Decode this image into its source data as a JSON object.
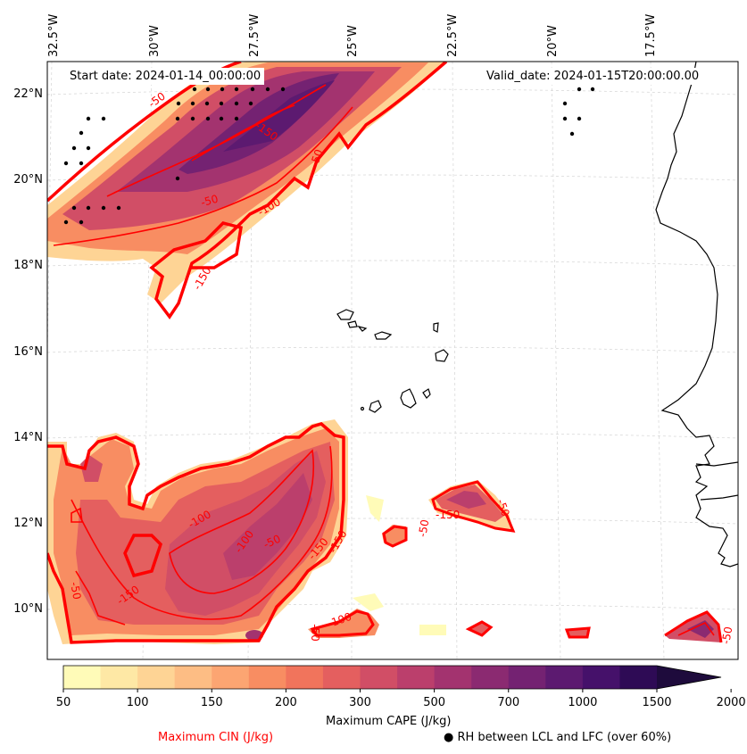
{
  "map": {
    "start_date_label": "Start date: 2024-01-14_00:00:00",
    "valid_date_label": "Valid_date: 2024-01-15T20:00:00.00",
    "lon_labels": [
      "32.5°W",
      "30°W",
      "27.5°W",
      "25°W",
      "22.5°W",
      "20°W",
      "17.5°W"
    ],
    "lat_labels": [
      "22°N",
      "20°N",
      "18°N",
      "16°N",
      "14°N",
      "12°N",
      "10°N"
    ],
    "cin_contour_labels": [
      "-50",
      "-50",
      "-100",
      "-150",
      "-50",
      "-150",
      "-50",
      "-100",
      "-150",
      "-100",
      "-150",
      "-50",
      "-50",
      "-150",
      "-50",
      "-100",
      "-150",
      "-50",
      "-50"
    ],
    "colors": {
      "cin_contour": "#ff0000",
      "coastline": "#000000",
      "gridline": "#cccccc"
    }
  },
  "colorbar": {
    "title": "Maximum CAPE (J/kg)",
    "tick_labels": [
      "50",
      "100",
      "150",
      "200",
      "300",
      "500",
      "700",
      "1000",
      "1500",
      "2000"
    ],
    "level_colors": [
      "#fffbb8",
      "#fee8a5",
      "#fed495",
      "#fdbd84",
      "#fca572",
      "#f88d62",
      "#f1745c",
      "#e45f5f",
      "#d14e66",
      "#bb3f6c",
      "#a3336f",
      "#8b2a71",
      "#742272",
      "#5c1a70",
      "#45116a",
      "#2e0b55",
      "#1e0b3c"
    ],
    "extend": "max"
  },
  "legend": {
    "cin_label": "Maximum CIN (J/kg)",
    "cin_color": "#ff0000",
    "rh_marker": "●",
    "rh_label": "RH between LCL and LFC (over 60%)"
  }
}
